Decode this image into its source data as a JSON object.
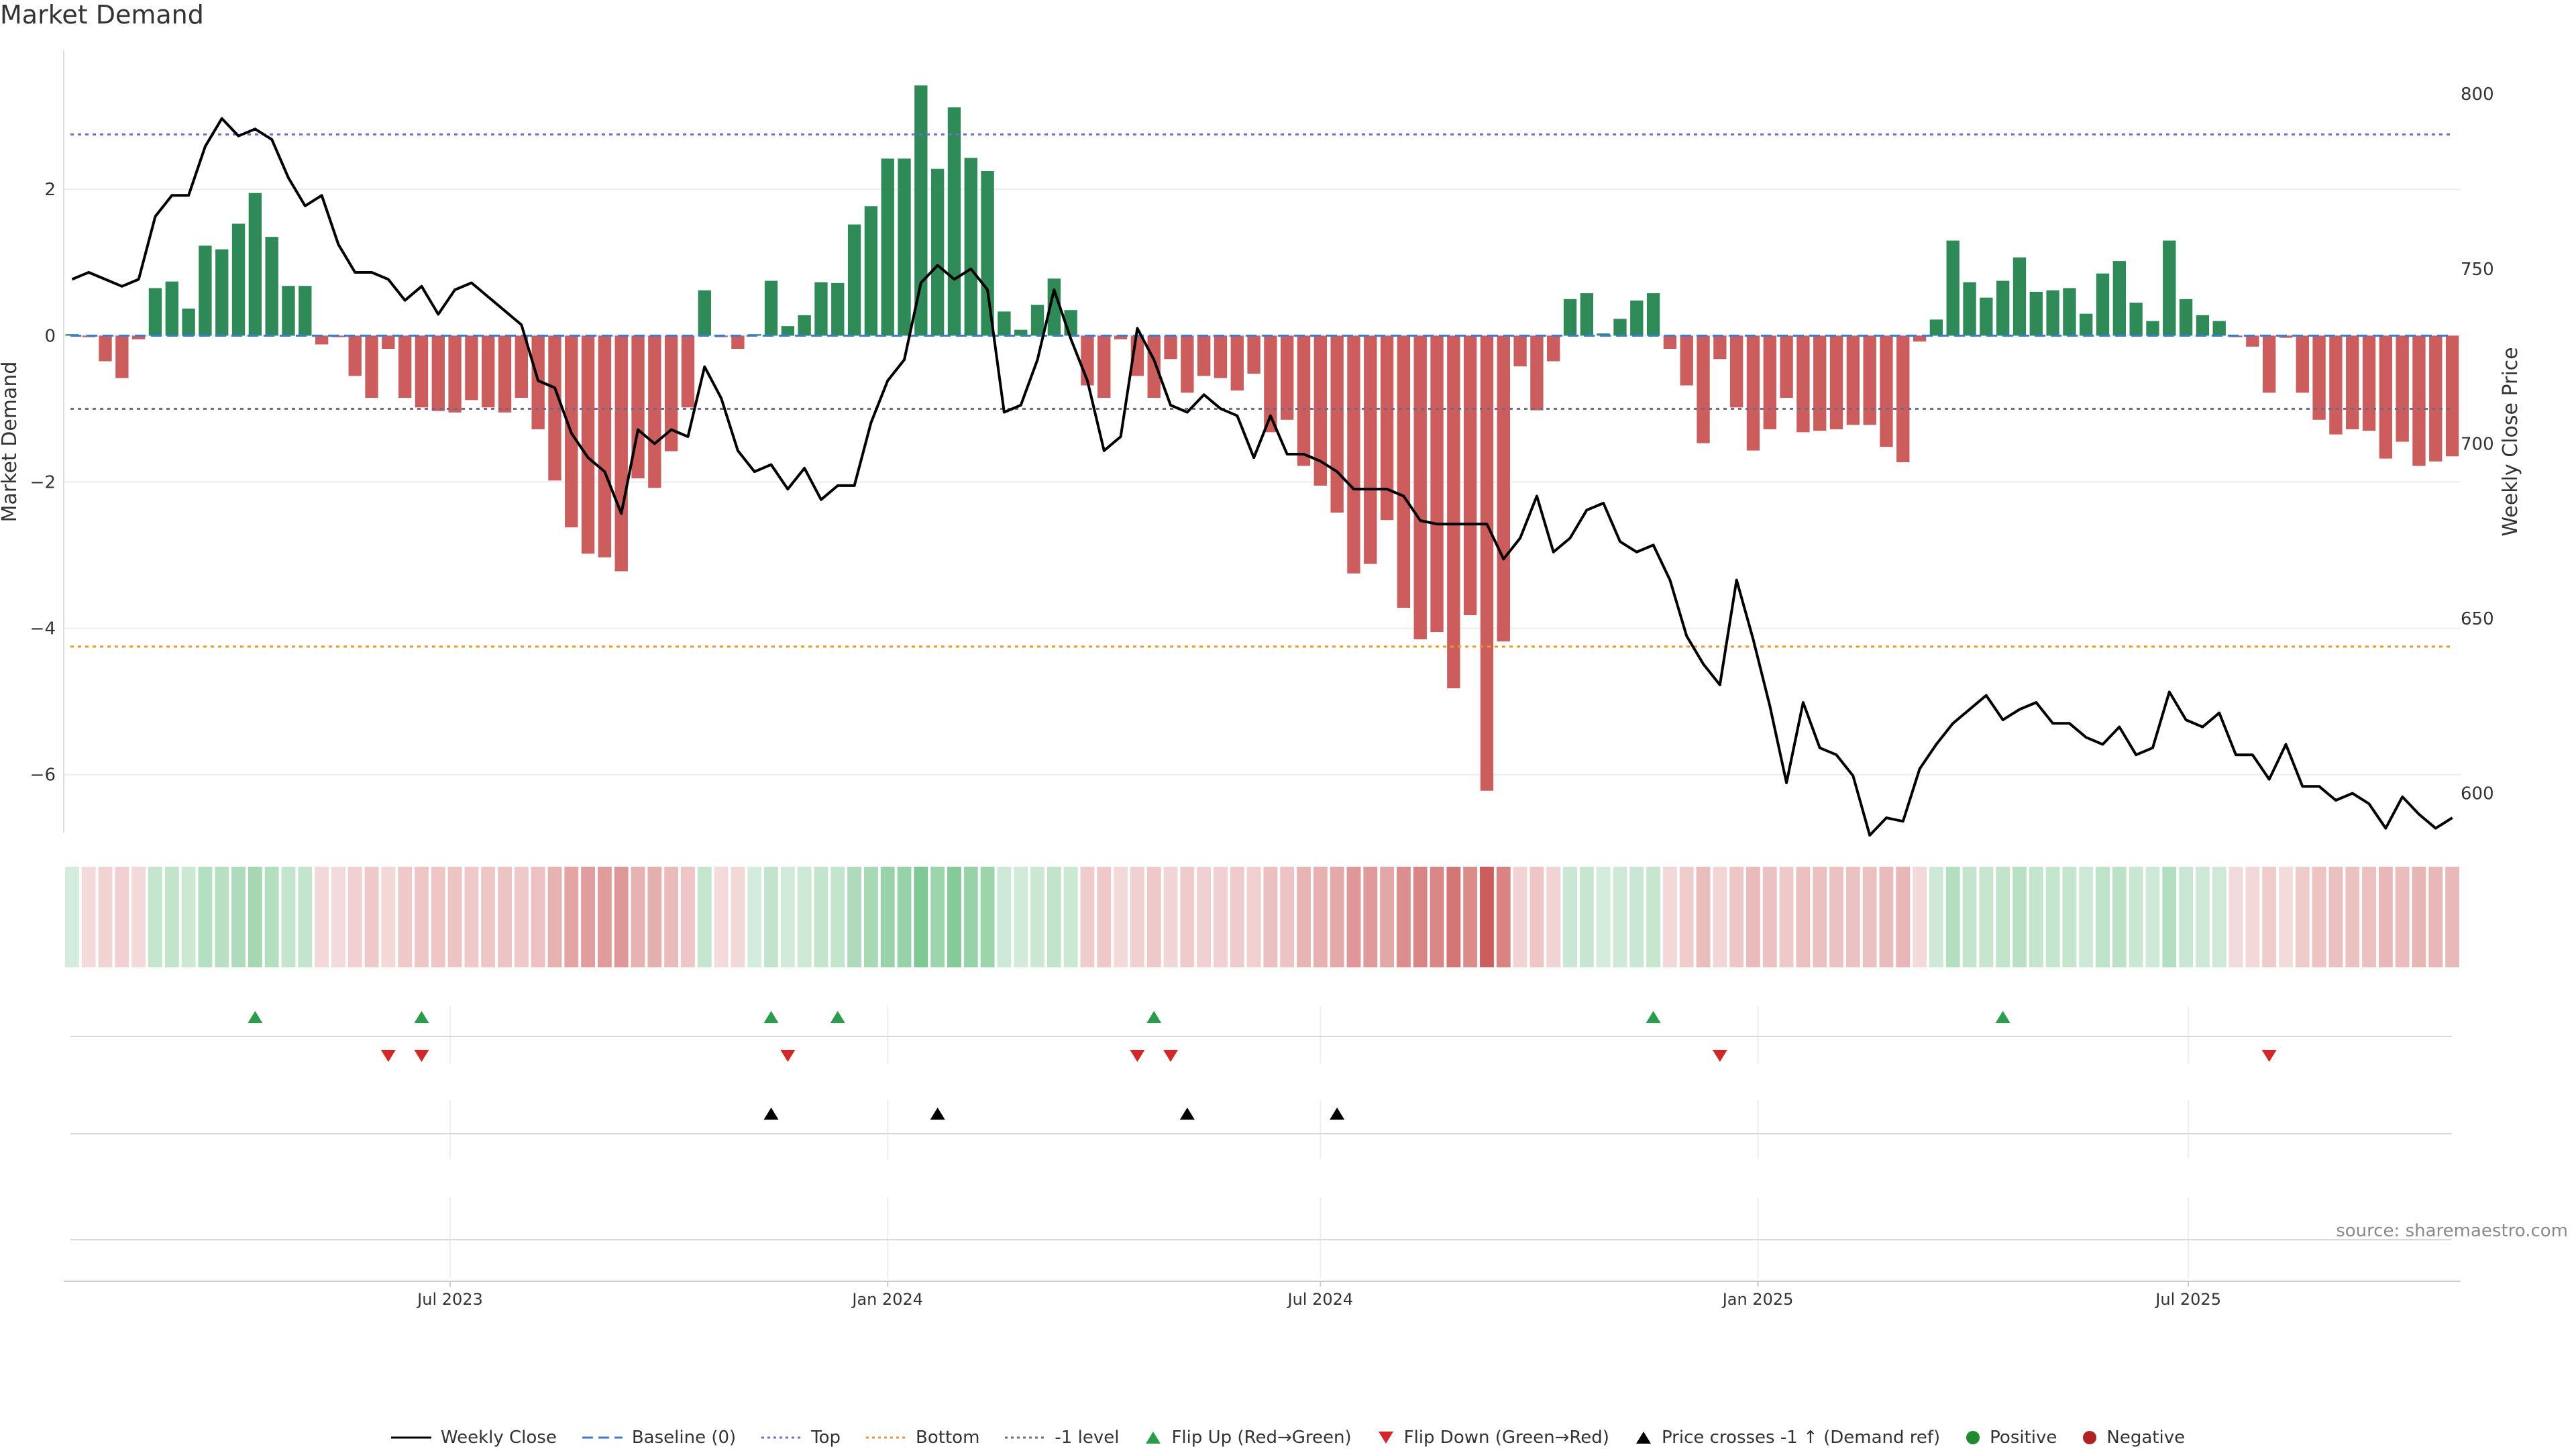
{
  "title": "Market Demand",
  "source": "source: sharemaestro.com",
  "colors": {
    "positive": "#2e8b57",
    "negative": "#cd5c5c",
    "flip_up": "#2a9d4a",
    "flip_down": "#d62728",
    "cross": "#000000",
    "top_line": "#6b6bd6",
    "bottom_line": "#e69a1e",
    "minus1_line": "#6a6a8a",
    "price_line": "#000000"
  },
  "legend": {
    "weekly_close": "Weekly Close",
    "baseline": "Baseline (0)",
    "top": "Top",
    "bottom": "Bottom",
    "minus1": "-1 level",
    "flip_up": "Flip Up (Red→Green)",
    "flip_down": "Flip Down (Green→Red)",
    "cross": "Price crosses -1 ↑ (Demand ref)",
    "positive": "Positive",
    "negative": "Negative"
  },
  "chart_data": {
    "type": "bar",
    "title": "Market Demand",
    "ylabel": "Market Demand",
    "y2label": "Weekly Close Price",
    "ylim": [
      -6.8,
      3.9
    ],
    "y2lim": [
      588.6,
      812.5
    ],
    "yticks": [
      2,
      0,
      -2,
      -4,
      -6
    ],
    "y2ticks": [
      800,
      750,
      700,
      650,
      600
    ],
    "reference_levels": {
      "top": 2.75,
      "bottom": -4.25,
      "minus1": -1.0,
      "baseline": 0
    },
    "x_start": "2023-01-23",
    "x_step_days": 7,
    "x_ticks": [
      {
        "date": "2023-07-01",
        "label": "Jul 2023"
      },
      {
        "date": "2024-01-01",
        "label": "Jan 2024"
      },
      {
        "date": "2024-07-01",
        "label": "Jul 2024"
      },
      {
        "date": "2025-01-01",
        "label": "Jan 2025"
      },
      {
        "date": "2025-07-01",
        "label": "Jul 2025"
      }
    ],
    "demand": [
      0.02,
      -0.02,
      -0.35,
      -0.58,
      -0.05,
      0.65,
      0.74,
      0.37,
      1.23,
      1.18,
      1.53,
      1.95,
      1.35,
      0.68,
      0.68,
      -0.12,
      -0.02,
      -0.55,
      -0.85,
      -0.18,
      -0.85,
      -0.98,
      -1.03,
      -1.05,
      -0.88,
      -0.98,
      -1.05,
      -0.85,
      -1.28,
      -1.98,
      -2.62,
      -2.98,
      -3.03,
      -3.22,
      -1.95,
      -2.08,
      -1.58,
      -0.98,
      0.62,
      -0.02,
      -0.18,
      0.02,
      0.75,
      0.13,
      0.28,
      0.73,
      0.72,
      1.52,
      1.77,
      2.42,
      2.42,
      3.42,
      2.28,
      3.12,
      2.43,
      2.25,
      0.33,
      0.08,
      0.42,
      0.78,
      0.35,
      -0.68,
      -0.85,
      -0.05,
      -0.55,
      -0.85,
      -0.32,
      -0.78,
      -0.55,
      -0.58,
      -0.75,
      -0.52,
      -1.32,
      -1.15,
      -1.78,
      -2.05,
      -2.42,
      -3.25,
      -3.12,
      -2.52,
      -3.72,
      -4.15,
      -4.05,
      -4.82,
      -3.82,
      -6.22,
      -4.18,
      -0.42,
      -1.02,
      -0.35,
      0.5,
      0.58,
      0.03,
      0.23,
      0.48,
      0.58,
      -0.18,
      -0.68,
      -1.47,
      -0.32,
      -0.98,
      -1.57,
      -1.28,
      -0.85,
      -1.32,
      -1.3,
      -1.28,
      -1.22,
      -1.22,
      -1.52,
      -1.73,
      -0.08,
      0.22,
      1.3,
      0.73,
      0.52,
      0.75,
      1.07,
      0.6,
      0.62,
      0.65,
      0.3,
      0.85,
      1.02,
      0.45,
      0.2,
      1.3,
      0.5,
      0.28,
      0.2,
      -0.02,
      -0.15,
      -0.78,
      -0.03,
      -0.78,
      -1.15,
      -1.35,
      -1.28,
      -1.3,
      -1.68,
      -1.45,
      -1.78,
      -1.72,
      -1.65
    ],
    "weekly_close": [
      747,
      749,
      747,
      745,
      747,
      765,
      771,
      771,
      785,
      793,
      788,
      790,
      787,
      776,
      768,
      771,
      757,
      749,
      749,
      747,
      741,
      745,
      737,
      744,
      746,
      742,
      738,
      734,
      718,
      716,
      703,
      696,
      692,
      680,
      704,
      700,
      704,
      702,
      722,
      713,
      698,
      692,
      694,
      687,
      693,
      684,
      688,
      688,
      706,
      718,
      724,
      746,
      751,
      747,
      750,
      744,
      709,
      711,
      724,
      744,
      730,
      718,
      698,
      702,
      733,
      724,
      711,
      709,
      714,
      710,
      708,
      696,
      708,
      697,
      697,
      695,
      692,
      687,
      687,
      687,
      685,
      678,
      677,
      677,
      677,
      677,
      667,
      673,
      685,
      669,
      673,
      681,
      683,
      672,
      669,
      671,
      661,
      645,
      637,
      631,
      661,
      644,
      625,
      603,
      626,
      613,
      611,
      605,
      588,
      593,
      592,
      607,
      614,
      620,
      624,
      628,
      621,
      624,
      626,
      620,
      620,
      616,
      614,
      619,
      611,
      613,
      629,
      621,
      619,
      623,
      611,
      611,
      604,
      614,
      602,
      602,
      598,
      600,
      597,
      590,
      599,
      594,
      590,
      593
    ],
    "flip_up": [
      "2023-04-10",
      "2023-06-19",
      "2023-11-13",
      "2023-12-11",
      "2024-04-22",
      "2024-11-18",
      "2025-04-14"
    ],
    "flip_down": [
      "2023-06-05",
      "2023-06-19",
      "2023-11-20",
      "2024-04-15",
      "2024-04-29",
      "2024-12-16",
      "2025-08-04"
    ],
    "price_crosses_minus1_up": [
      "2023-11-13",
      "2024-01-22",
      "2024-05-06",
      "2024-07-08"
    ],
    "positive_markers": [],
    "negative_markers": []
  }
}
